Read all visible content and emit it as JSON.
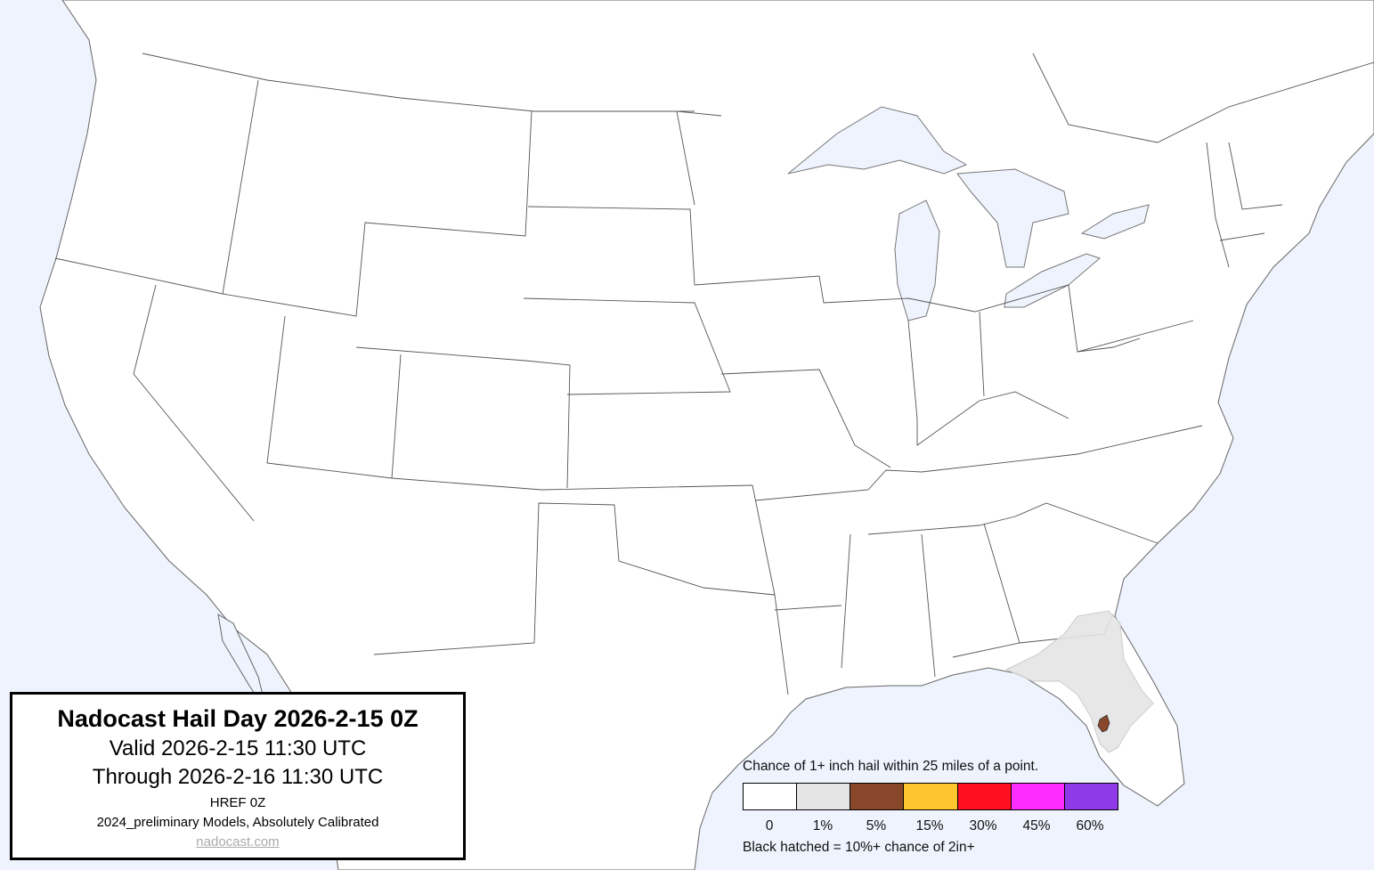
{
  "title_box": {
    "title": "Nadocast Hail Day 2026-2-15 0Z",
    "valid": "Valid 2026-2-15 11:30 UTC",
    "through": "Through 2026-2-16 11:30 UTC",
    "model": "HREF 0Z",
    "calibration": "2024_preliminary Models, Absolutely Calibrated",
    "link": "nadocast.com"
  },
  "legend": {
    "caption": "Chance of 1+ inch hail within 25 miles of a point.",
    "bins": [
      {
        "label": "0",
        "color": "#ffffff"
      },
      {
        "label": "1%",
        "color": "#e4e4e4"
      },
      {
        "label": "5%",
        "color": "#88472a"
      },
      {
        "label": "15%",
        "color": "#ffc52e"
      },
      {
        "label": "30%",
        "color": "#ff0f1f"
      },
      {
        "label": "45%",
        "color": "#ff2cff"
      },
      {
        "label": "60%",
        "color": "#8f3ae8"
      }
    ],
    "note": "Black hatched = 10%+ chance of 2in+"
  },
  "map": {
    "water_color": "#eef3fd",
    "land_color": "#ffffff",
    "forecast_areas": [
      {
        "region": "Florida peninsula / Georgia-Florida border",
        "level": "1%"
      },
      {
        "region": "Tampa Bay area",
        "level": "5%"
      }
    ]
  }
}
